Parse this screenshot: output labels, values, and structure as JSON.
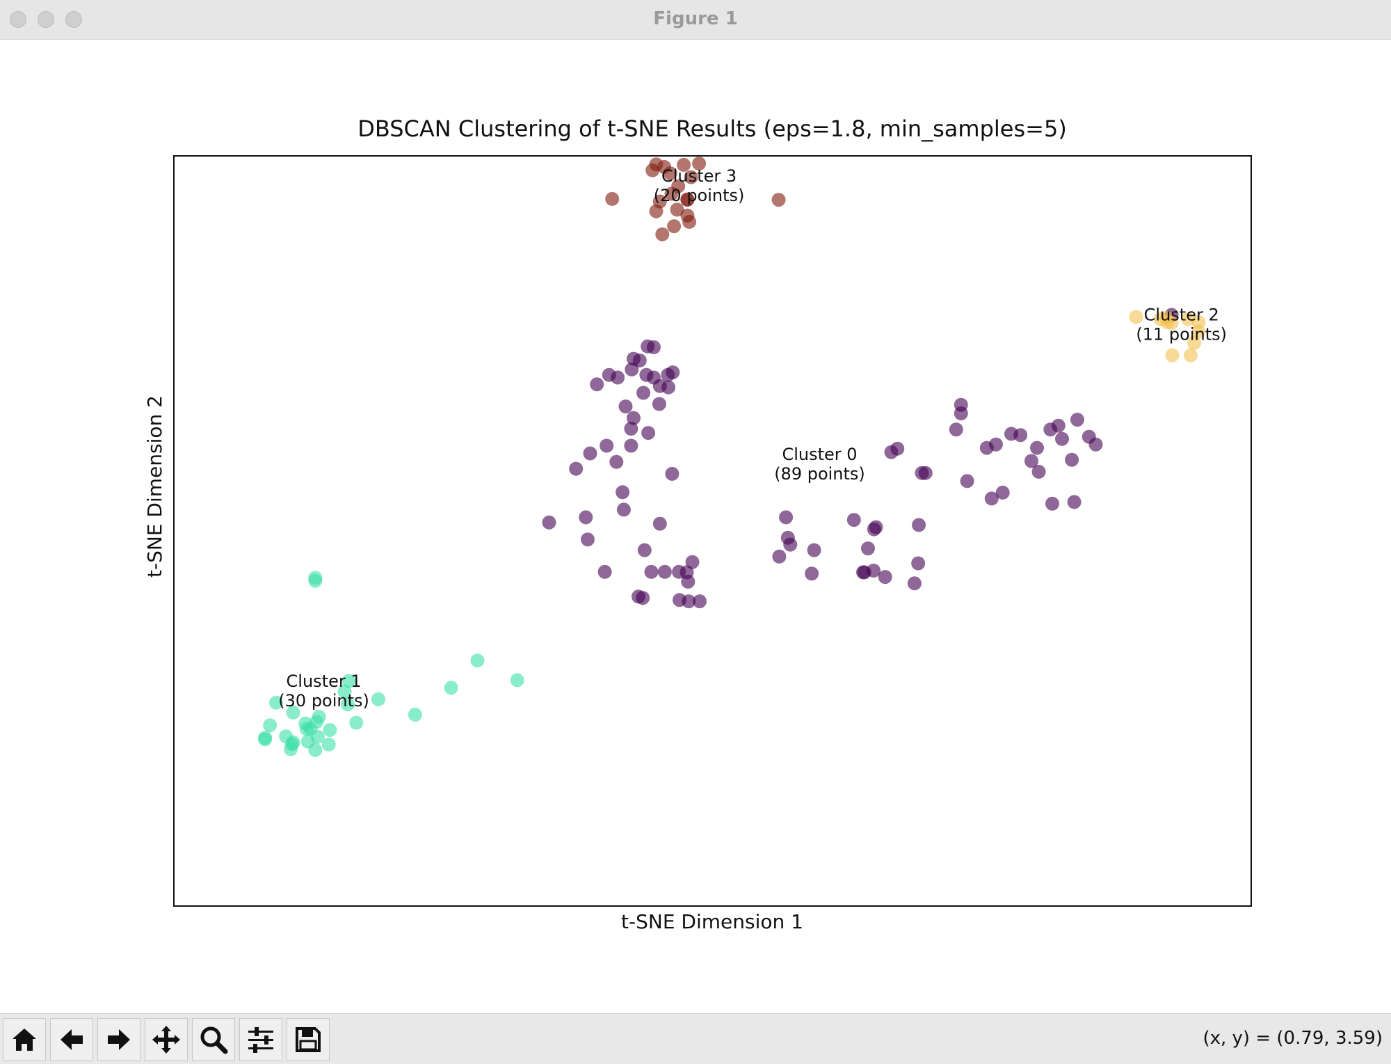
{
  "window": {
    "title": "Figure 1"
  },
  "toolbar": {
    "buttons": [
      {
        "name": "home-button",
        "icon": "home-icon"
      },
      {
        "name": "back-button",
        "icon": "arrow-left-icon"
      },
      {
        "name": "forward-button",
        "icon": "arrow-right-icon"
      },
      {
        "name": "pan-button",
        "icon": "move-icon"
      },
      {
        "name": "zoom-button",
        "icon": "search-icon"
      },
      {
        "name": "configure-subplots-button",
        "icon": "sliders-icon"
      },
      {
        "name": "save-button",
        "icon": "save-icon"
      }
    ],
    "coordinates": "(x, y) = (0.79, 3.59)"
  },
  "chart_data": {
    "type": "scatter",
    "title": "DBSCAN Clustering of t-SNE Results (eps=1.8, min_samples=5)",
    "xlabel": "t-SNE Dimension 1",
    "ylabel": "t-SNE Dimension 2",
    "xlim": [
      -8.8,
      8.8
    ],
    "ylim": [
      -8.8,
      8.8
    ],
    "grid": false,
    "ticks_visible": false,
    "colors": {
      "cluster_0": "#440154",
      "cluster_1": "#3bdfa8",
      "cluster_2": "#f4c04e",
      "cluster_3": "#7e1a0e"
    },
    "annotations": [
      {
        "cluster": 0,
        "line1": "Cluster 0",
        "line2": "(89 points)",
        "x": 1.75,
        "y": 1.6
      },
      {
        "cluster": 1,
        "line1": "Cluster 1",
        "line2": "(30 points)",
        "x": -6.35,
        "y": -3.72
      },
      {
        "cluster": 2,
        "line1": "Cluster 2",
        "line2": "(11 points)",
        "x": 7.66,
        "y": 4.87
      },
      {
        "cluster": 3,
        "line1": "Cluster 3",
        "line2": "(20 points)",
        "x": -0.22,
        "y": 8.13
      }
    ],
    "series": [
      {
        "cluster": 0,
        "points": [
          [
            -1.29,
            4.04
          ],
          [
            -1.06,
            4.33
          ],
          [
            -0.96,
            4.31
          ],
          [
            -1.19,
            4.0
          ],
          [
            -1.69,
            3.66
          ],
          [
            -1.55,
            3.6
          ],
          [
            -1.32,
            3.79
          ],
          [
            -0.65,
            3.72
          ],
          [
            -0.73,
            3.66
          ],
          [
            -1.08,
            3.66
          ],
          [
            -0.96,
            3.6
          ],
          [
            -1.13,
            3.24
          ],
          [
            -1.89,
            3.44
          ],
          [
            -1.42,
            2.92
          ],
          [
            -0.87,
            2.98
          ],
          [
            -0.72,
            3.37
          ],
          [
            -0.86,
            3.4
          ],
          [
            -1.29,
            2.65
          ],
          [
            -1.05,
            2.3
          ],
          [
            -1.33,
            2.4
          ],
          [
            -2.0,
            1.82
          ],
          [
            -2.23,
            1.46
          ],
          [
            -1.73,
            2.0
          ],
          [
            -1.33,
            2.0
          ],
          [
            -1.57,
            1.62
          ],
          [
            -0.66,
            1.34
          ],
          [
            -1.47,
            0.91
          ],
          [
            -1.45,
            0.5
          ],
          [
            -2.67,
            0.2
          ],
          [
            -0.86,
            0.17
          ],
          [
            -1.11,
            -0.45
          ],
          [
            -2.07,
            0.32
          ],
          [
            -2.04,
            -0.2
          ],
          [
            -1.76,
            -0.96
          ],
          [
            -1.0,
            -0.96
          ],
          [
            -0.78,
            -0.96
          ],
          [
            -0.55,
            -0.96
          ],
          [
            -0.33,
            -0.73
          ],
          [
            -0.4,
            -1.19
          ],
          [
            -1.21,
            -1.54
          ],
          [
            -1.14,
            -1.57
          ],
          [
            -0.21,
            -1.65
          ],
          [
            -0.39,
            -1.65
          ],
          [
            -0.54,
            -1.62
          ],
          [
            -0.42,
            -0.97
          ],
          [
            1.09,
            -0.6
          ],
          [
            1.2,
            0.32
          ],
          [
            1.27,
            -0.32
          ],
          [
            1.62,
            -1.0
          ],
          [
            1.66,
            -0.45
          ],
          [
            2.48,
            -0.97
          ],
          [
            2.63,
            -0.93
          ],
          [
            2.46,
            -0.97
          ],
          [
            2.64,
            0.04
          ],
          [
            2.67,
            0.09
          ],
          [
            1.23,
            -0.16
          ],
          [
            2.92,
            1.85
          ],
          [
            3.37,
            0.14
          ],
          [
            3.36,
            -0.76
          ],
          [
            2.82,
            -1.08
          ],
          [
            3.3,
            -1.23
          ],
          [
            2.54,
            -0.41
          ],
          [
            2.31,
            0.26
          ],
          [
            3.02,
            1.93
          ],
          [
            3.42,
            1.36
          ],
          [
            3.48,
            1.36
          ],
          [
            3.98,
            2.38
          ],
          [
            4.06,
            2.76
          ],
          [
            4.06,
            2.96
          ],
          [
            4.48,
            1.95
          ],
          [
            4.74,
            0.9
          ],
          [
            4.63,
            2.03
          ],
          [
            4.88,
            2.28
          ],
          [
            4.16,
            1.17
          ],
          [
            4.56,
            0.76
          ],
          [
            5.03,
            2.25
          ],
          [
            5.52,
            2.38
          ],
          [
            5.71,
            2.16
          ],
          [
            5.21,
            1.64
          ],
          [
            5.3,
            1.95
          ],
          [
            5.87,
            1.67
          ],
          [
            5.55,
            0.64
          ],
          [
            5.96,
            2.61
          ],
          [
            5.65,
            2.47
          ],
          [
            6.26,
            2.03
          ],
          [
            6.15,
            2.21
          ],
          [
            5.33,
            1.39
          ],
          [
            5.91,
            0.68
          ],
          [
            7.5,
            5.07
          ]
        ]
      },
      {
        "cluster": 1,
        "points": [
          [
            -6.49,
            -1.17
          ],
          [
            -6.49,
            -1.1
          ],
          [
            -5.94,
            -3.52
          ],
          [
            -6.01,
            -3.77
          ],
          [
            -7.13,
            -4.03
          ],
          [
            -6.85,
            -4.26
          ],
          [
            -6.63,
            -4.65
          ],
          [
            -6.45,
            -4.83
          ],
          [
            -6.85,
            -4.96
          ],
          [
            -7.23,
            -4.56
          ],
          [
            -6.97,
            -4.82
          ],
          [
            -6.57,
            -4.64
          ],
          [
            -6.25,
            -4.67
          ],
          [
            -6.49,
            -5.14
          ],
          [
            -6.65,
            -4.52
          ],
          [
            -6.43,
            -4.36
          ],
          [
            -6.47,
            -4.48
          ],
          [
            -6.87,
            -5.0
          ],
          [
            -6.89,
            -5.12
          ],
          [
            -7.31,
            -4.89
          ],
          [
            -7.31,
            -4.85
          ],
          [
            -6.61,
            -4.94
          ],
          [
            -6.27,
            -5.01
          ],
          [
            -5.96,
            -4.07
          ],
          [
            -5.46,
            -3.95
          ],
          [
            -5.82,
            -4.5
          ],
          [
            -4.86,
            -4.31
          ],
          [
            -4.27,
            -3.68
          ],
          [
            -3.84,
            -3.04
          ],
          [
            -3.19,
            -3.5
          ]
        ]
      },
      {
        "cluster": 2,
        "points": [
          [
            6.92,
            5.02
          ],
          [
            7.32,
            4.97
          ],
          [
            7.5,
            4.88
          ],
          [
            7.43,
            4.9
          ],
          [
            7.42,
            5.0
          ],
          [
            7.77,
            4.97
          ],
          [
            7.94,
            4.9
          ],
          [
            7.94,
            4.68
          ],
          [
            7.87,
            4.41
          ],
          [
            7.81,
            4.12
          ],
          [
            7.51,
            4.12
          ]
        ]
      },
      {
        "cluster": 3,
        "points": [
          [
            -0.92,
            8.6
          ],
          [
            -0.98,
            8.46
          ],
          [
            -0.79,
            8.54
          ],
          [
            -0.69,
            8.39
          ],
          [
            -0.47,
            8.59
          ],
          [
            -0.22,
            8.62
          ],
          [
            -0.35,
            8.3
          ],
          [
            -0.56,
            8.09
          ],
          [
            -0.67,
            7.91
          ],
          [
            -0.41,
            7.78
          ],
          [
            -0.86,
            7.73
          ],
          [
            -0.58,
            7.54
          ],
          [
            -0.92,
            7.5
          ],
          [
            -0.41,
            7.4
          ],
          [
            -0.38,
            7.25
          ],
          [
            -0.63,
            7.15
          ],
          [
            -0.82,
            6.96
          ],
          [
            -1.64,
            7.79
          ],
          [
            -0.41,
            7.77
          ],
          [
            1.08,
            7.77
          ]
        ]
      }
    ]
  }
}
